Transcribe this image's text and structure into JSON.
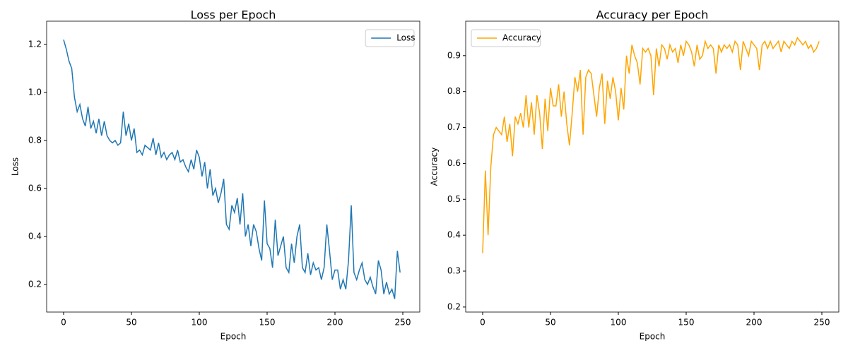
{
  "chart_data": [
    {
      "type": "line",
      "title": "Loss per Epoch",
      "xlabel": "Epoch",
      "ylabel": "Loss",
      "x": [
        0,
        2,
        4,
        6,
        8,
        10,
        12,
        14,
        16,
        18,
        20,
        22,
        24,
        26,
        28,
        30,
        32,
        34,
        36,
        38,
        40,
        42,
        44,
        46,
        48,
        50,
        52,
        54,
        56,
        58,
        60,
        62,
        64,
        66,
        68,
        70,
        72,
        74,
        76,
        78,
        80,
        82,
        84,
        86,
        88,
        90,
        92,
        94,
        96,
        98,
        100,
        102,
        104,
        106,
        108,
        110,
        112,
        114,
        116,
        118,
        120,
        122,
        124,
        126,
        128,
        130,
        132,
        134,
        136,
        138,
        140,
        142,
        144,
        146,
        148,
        150,
        152,
        154,
        156,
        158,
        160,
        162,
        164,
        166,
        168,
        170,
        172,
        174,
        176,
        178,
        180,
        182,
        184,
        186,
        188,
        190,
        192,
        194,
        196,
        198,
        200,
        202,
        204,
        206,
        208,
        210,
        212,
        214,
        216,
        218,
        220,
        222,
        224,
        226,
        228,
        230,
        232,
        234,
        236,
        238,
        240,
        242,
        244,
        246,
        248
      ],
      "series": [
        {
          "name": "Loss",
          "color": "#1f77b4",
          "values": [
            1.22,
            1.18,
            1.13,
            1.1,
            0.98,
            0.92,
            0.95,
            0.89,
            0.86,
            0.94,
            0.85,
            0.88,
            0.83,
            0.89,
            0.82,
            0.88,
            0.82,
            0.8,
            0.79,
            0.8,
            0.78,
            0.79,
            0.92,
            0.82,
            0.87,
            0.8,
            0.85,
            0.75,
            0.76,
            0.74,
            0.78,
            0.77,
            0.76,
            0.81,
            0.74,
            0.79,
            0.73,
            0.75,
            0.72,
            0.74,
            0.75,
            0.72,
            0.76,
            0.71,
            0.72,
            0.69,
            0.67,
            0.72,
            0.68,
            0.76,
            0.73,
            0.65,
            0.71,
            0.6,
            0.68,
            0.57,
            0.6,
            0.54,
            0.58,
            0.64,
            0.45,
            0.43,
            0.53,
            0.5,
            0.56,
            0.45,
            0.58,
            0.4,
            0.45,
            0.36,
            0.45,
            0.42,
            0.35,
            0.3,
            0.55,
            0.37,
            0.35,
            0.27,
            0.47,
            0.32,
            0.36,
            0.4,
            0.27,
            0.25,
            0.37,
            0.29,
            0.4,
            0.45,
            0.27,
            0.25,
            0.33,
            0.24,
            0.29,
            0.26,
            0.27,
            0.22,
            0.27,
            0.45,
            0.34,
            0.22,
            0.26,
            0.26,
            0.18,
            0.22,
            0.18,
            0.3,
            0.53,
            0.25,
            0.22,
            0.26,
            0.29,
            0.22,
            0.2,
            0.23,
            0.19,
            0.16,
            0.3,
            0.26,
            0.16,
            0.21,
            0.16,
            0.18,
            0.14,
            0.34,
            0.25
          ]
        }
      ],
      "xlim": [
        -12.5,
        262.5
      ],
      "xticks": [
        0,
        50,
        100,
        150,
        200,
        250
      ],
      "ylim": [
        0.085,
        1.297
      ],
      "yticks": [
        0.2,
        0.4,
        0.6,
        0.8,
        {
          "value": 1.0,
          "label": "1.0"
        },
        1.2
      ],
      "legend": "upper right"
    },
    {
      "type": "line",
      "title": "Accuracy per Epoch",
      "xlabel": "Epoch",
      "ylabel": "Accuracy",
      "x": [
        0,
        2,
        4,
        6,
        8,
        10,
        12,
        14,
        16,
        18,
        20,
        22,
        24,
        26,
        28,
        30,
        32,
        34,
        36,
        38,
        40,
        42,
        44,
        46,
        48,
        50,
        52,
        54,
        56,
        58,
        60,
        62,
        64,
        66,
        68,
        70,
        72,
        74,
        76,
        78,
        80,
        82,
        84,
        86,
        88,
        90,
        92,
        94,
        96,
        98,
        100,
        102,
        104,
        106,
        108,
        110,
        112,
        114,
        116,
        118,
        120,
        122,
        124,
        126,
        128,
        130,
        132,
        134,
        136,
        138,
        140,
        142,
        144,
        146,
        148,
        150,
        152,
        154,
        156,
        158,
        160,
        162,
        164,
        166,
        168,
        170,
        172,
        174,
        176,
        178,
        180,
        182,
        184,
        186,
        188,
        190,
        192,
        194,
        196,
        198,
        200,
        202,
        204,
        206,
        208,
        210,
        212,
        214,
        216,
        218,
        220,
        222,
        224,
        226,
        228,
        230,
        232,
        234,
        236,
        238,
        240,
        242,
        244,
        246,
        248
      ],
      "series": [
        {
          "name": "Accuracy",
          "color": "#ffa500",
          "values": [
            0.35,
            0.58,
            0.4,
            0.59,
            0.68,
            0.7,
            0.69,
            0.68,
            0.73,
            0.66,
            0.71,
            0.62,
            0.73,
            0.71,
            0.74,
            0.7,
            0.79,
            0.7,
            0.77,
            0.68,
            0.79,
            0.74,
            0.64,
            0.78,
            0.69,
            0.81,
            0.76,
            0.76,
            0.82,
            0.73,
            0.8,
            0.71,
            0.65,
            0.74,
            0.84,
            0.8,
            0.86,
            0.68,
            0.84,
            0.86,
            0.85,
            0.79,
            0.73,
            0.81,
            0.85,
            0.71,
            0.83,
            0.78,
            0.84,
            0.8,
            0.72,
            0.81,
            0.75,
            0.9,
            0.85,
            0.93,
            0.9,
            0.88,
            0.82,
            0.92,
            0.91,
            0.92,
            0.9,
            0.79,
            0.92,
            0.87,
            0.93,
            0.92,
            0.89,
            0.93,
            0.91,
            0.92,
            0.88,
            0.93,
            0.9,
            0.94,
            0.93,
            0.91,
            0.87,
            0.93,
            0.89,
            0.9,
            0.94,
            0.92,
            0.93,
            0.92,
            0.85,
            0.93,
            0.91,
            0.93,
            0.92,
            0.93,
            0.91,
            0.94,
            0.93,
            0.86,
            0.94,
            0.92,
            0.9,
            0.94,
            0.93,
            0.92,
            0.86,
            0.93,
            0.94,
            0.92,
            0.94,
            0.92,
            0.93,
            0.94,
            0.91,
            0.94,
            0.93,
            0.92,
            0.94,
            0.93,
            0.95,
            0.94,
            0.93,
            0.94,
            0.92,
            0.93,
            0.91,
            0.92,
            0.94
          ]
        }
      ],
      "xlim": [
        -12.5,
        262.5
      ],
      "xticks": [
        0,
        50,
        100,
        150,
        200,
        250
      ],
      "ylim": [
        0.186,
        0.996
      ],
      "yticks": [
        0.2,
        0.3,
        0.4,
        0.5,
        0.6,
        0.7,
        0.8,
        0.9
      ],
      "legend": "upper left"
    }
  ]
}
